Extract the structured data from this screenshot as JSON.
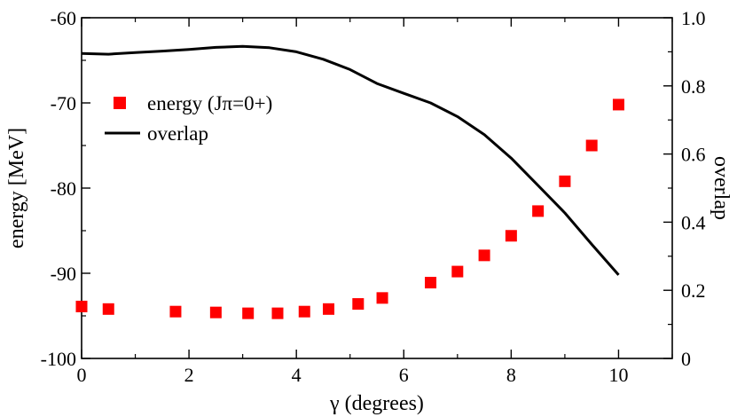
{
  "chart_data": {
    "type": "scatter+line",
    "xlabel": "γ (degrees)",
    "ylabel_left": "energy [MeV]",
    "ylabel_right": "overlap",
    "xlim": [
      0,
      11
    ],
    "ylim_left": [
      -100,
      -60
    ],
    "ylim_right": [
      0,
      1.0
    ],
    "x_ticks": [
      0,
      2,
      4,
      6,
      8,
      10
    ],
    "x_tick_labels": [
      "0",
      "2",
      "4",
      "6",
      "8",
      "10"
    ],
    "y_left_ticks": [
      -100,
      -90,
      -80,
      -70,
      -60
    ],
    "y_left_tick_labels": [
      "-100",
      "-90",
      "-80",
      "-70",
      "-60"
    ],
    "y_right_ticks": [
      0,
      0.2,
      0.4,
      0.6,
      0.8,
      1.0
    ],
    "y_right_tick_labels": [
      "0",
      "0.2",
      "0.4",
      "0.6",
      "0.8",
      "1.0"
    ],
    "legend": {
      "position": "center-left",
      "entries": [
        {
          "label": "energy (Jπ=0+)",
          "marker": "square",
          "color": "#ff0000"
        },
        {
          "label": "overlap",
          "marker": "line",
          "color": "#000000"
        }
      ]
    },
    "series": [
      {
        "name": "energy (Jπ=0+)",
        "axis": "left",
        "style": "square-markers",
        "color": "#ff0000",
        "x": [
          0,
          0.5,
          1.75,
          2.5,
          3.1,
          3.65,
          4.15,
          4.6,
          5.15,
          5.6,
          6.5,
          7.0,
          7.5,
          8.0,
          8.5,
          9.0,
          9.5,
          10.0
        ],
        "y": [
          -93.9,
          -94.2,
          -94.5,
          -94.6,
          -94.7,
          -94.7,
          -94.5,
          -94.2,
          -93.6,
          -92.9,
          -91.1,
          -89.8,
          -87.9,
          -85.6,
          -82.7,
          -79.2,
          -75.0,
          -70.2
        ]
      },
      {
        "name": "overlap",
        "axis": "right",
        "style": "line",
        "color": "#000000",
        "x": [
          0,
          0.5,
          1.0,
          1.5,
          2.0,
          2.5,
          3.0,
          3.5,
          4.0,
          4.5,
          5.0,
          5.5,
          6.0,
          6.5,
          7.0,
          7.5,
          8.0,
          8.5,
          9.0,
          9.5,
          10.0
        ],
        "y": [
          0.895,
          0.893,
          0.898,
          0.902,
          0.907,
          0.913,
          0.916,
          0.912,
          0.9,
          0.878,
          0.848,
          0.807,
          0.778,
          0.75,
          0.71,
          0.657,
          0.588,
          0.508,
          0.427,
          0.335,
          0.245
        ]
      }
    ]
  }
}
